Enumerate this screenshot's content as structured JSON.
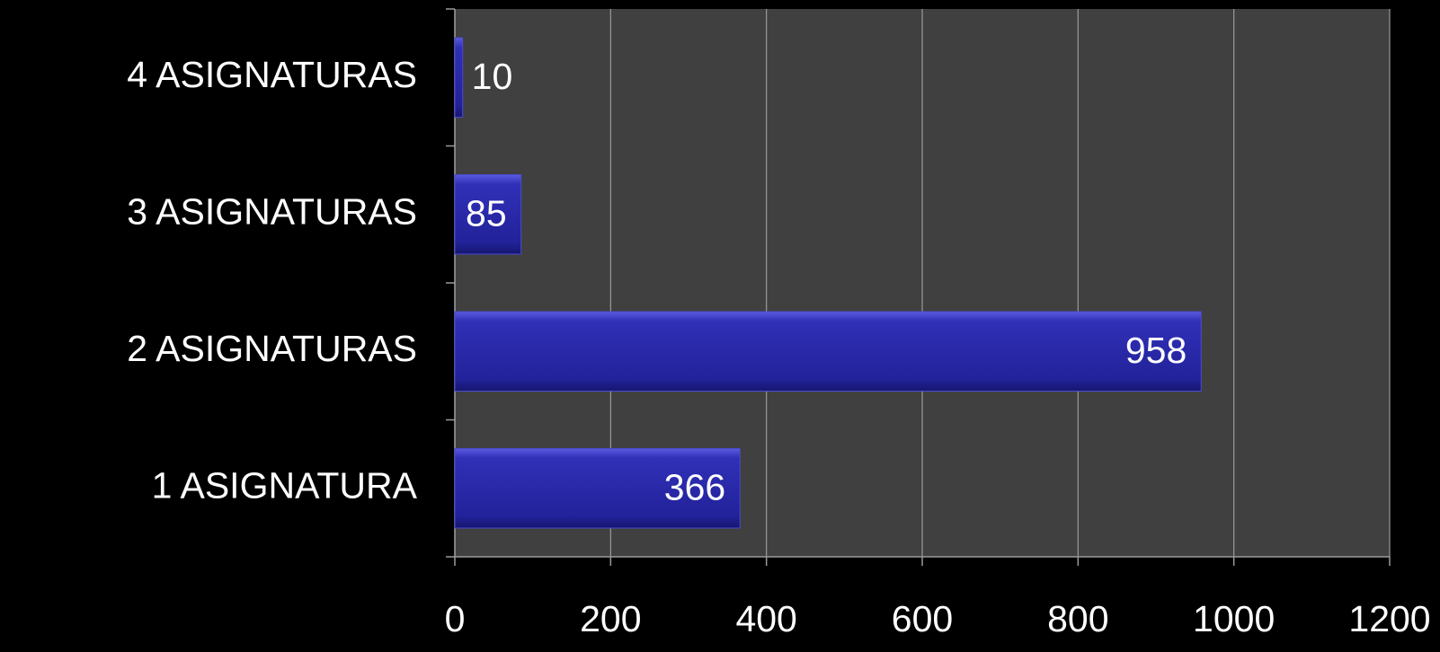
{
  "chart_data": {
    "type": "bar",
    "orientation": "horizontal",
    "categories": [
      "1 ASIGNATURA",
      "2 ASIGNATURAS",
      "3 ASIGNATURAS",
      "4 ASIGNATURAS"
    ],
    "values": [
      366,
      958,
      85,
      10
    ],
    "color": "#2626a4",
    "xlim": [
      0,
      1200
    ],
    "xticks": [
      0,
      200,
      400,
      600,
      800,
      1000,
      1200
    ],
    "grid": true
  }
}
